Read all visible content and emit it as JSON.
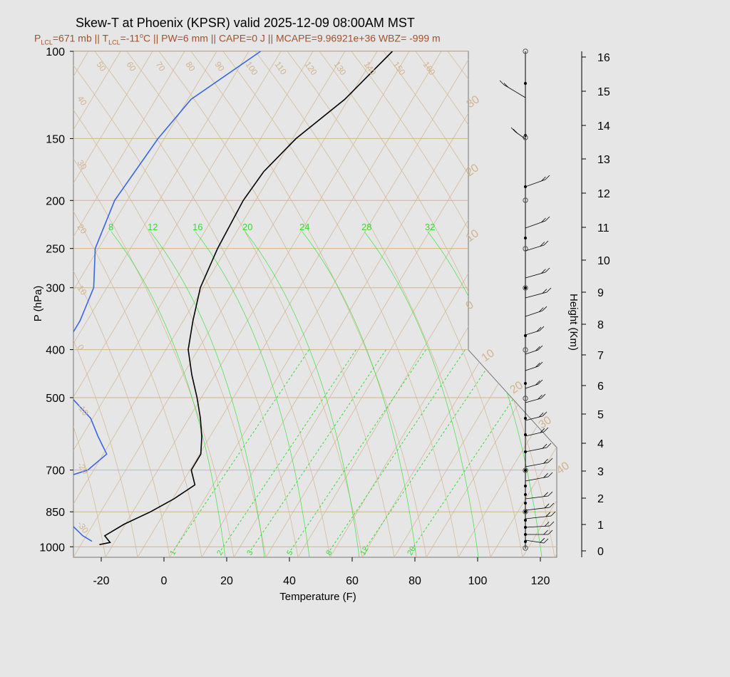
{
  "title": "Skew-T at Phoenix (KPSR) valid 2025-12-09 08:00AM MST",
  "subtitle": {
    "p_lcl_label": "P",
    "p_lcl_sub": "LCL",
    "p_lcl_rest": "=671 mb || T",
    "t_lcl_sub": "LCL",
    "t_lcl_rest": "=-11",
    "deg_sup": "o",
    "rest": "C || PW=6 mm || CAPE=0 J || MCAPE=9.96921e+36 WBZ= -999 m"
  },
  "colors": {
    "temperature": "#000000",
    "dewpoint": "#3a66e6",
    "isotherm": "#d2b48c",
    "mixing_ratio": "#33dd33",
    "subtitle": "#a0522d"
  },
  "chart_data": {
    "type": "line",
    "xlabel": "Temperature (F)",
    "ylabel": "P (hPa)",
    "y2label": "Height (Km)",
    "x_ticks": [
      "-20",
      "0",
      "20",
      "40",
      "60",
      "80",
      "100",
      "120"
    ],
    "p_ticks": [
      "100",
      "150",
      "200",
      "250",
      "300",
      "400",
      "500",
      "700",
      "850",
      "1000"
    ],
    "height_ticks": [
      "0",
      "1",
      "2",
      "3",
      "4",
      "5",
      "6",
      "7",
      "8",
      "9",
      "10",
      "11",
      "12",
      "13",
      "14",
      "15",
      "16"
    ],
    "xlim": [
      -28,
      125
    ],
    "plim": [
      1050,
      100
    ],
    "isotherm_labels": [
      "50",
      "60",
      "70",
      "80",
      "90",
      "100",
      "110",
      "120",
      "130",
      "140",
      "150",
      "160"
    ],
    "isotherm_left_labels": [
      "40",
      "30",
      "20",
      "10",
      "0",
      "-10",
      "-20",
      "-30"
    ],
    "isotherm_right_labels": [
      "30",
      "20",
      "10",
      "0",
      "10",
      "20",
      "30",
      "40"
    ],
    "mixing_ratio_top": [
      "8",
      "12",
      "16",
      "20",
      "24",
      "28",
      "32"
    ],
    "mixing_ratio_bottom": [
      "1",
      "2",
      "3",
      "5",
      "8",
      "12",
      "20"
    ],
    "series": [
      {
        "key": "temperature",
        "points": [
          [
            -23,
            990
          ],
          [
            -20,
            980
          ],
          [
            -23,
            950
          ],
          [
            -19,
            900
          ],
          [
            -13,
            850
          ],
          [
            -8,
            800
          ],
          [
            -4,
            750
          ],
          [
            -8,
            700
          ],
          [
            -8,
            650
          ],
          [
            -11,
            600
          ],
          [
            -15,
            550
          ],
          [
            -20,
            500
          ],
          [
            -26,
            450
          ],
          [
            -32,
            400
          ],
          [
            -36,
            350
          ],
          [
            -40,
            300
          ],
          [
            -42,
            250
          ],
          [
            -43,
            200
          ],
          [
            -42,
            175
          ],
          [
            -38,
            150
          ],
          [
            -30,
            125
          ],
          [
            -24,
            100
          ]
        ]
      },
      {
        "key": "dewpoint",
        "points": [
          [
            -26,
            975
          ],
          [
            -30,
            950
          ],
          [
            -33,
            925
          ],
          [
            -36,
            900
          ],
          [
            -38,
            875
          ],
          [
            -41,
            850
          ],
          [
            -49,
            800
          ],
          [
            -52,
            775
          ],
          [
            -53,
            750
          ],
          [
            -41,
            700
          ],
          [
            -38,
            650
          ],
          [
            -44,
            600
          ],
          [
            -50,
            550
          ],
          [
            -60,
            500
          ],
          [
            -66,
            450
          ],
          [
            -72,
            400
          ],
          [
            -72,
            350
          ],
          [
            -74,
            300
          ],
          [
            -81,
            250
          ],
          [
            -84,
            200
          ],
          [
            -82,
            150
          ],
          [
            -79,
            125
          ],
          [
            -66,
            100
          ]
        ]
      }
    ]
  }
}
